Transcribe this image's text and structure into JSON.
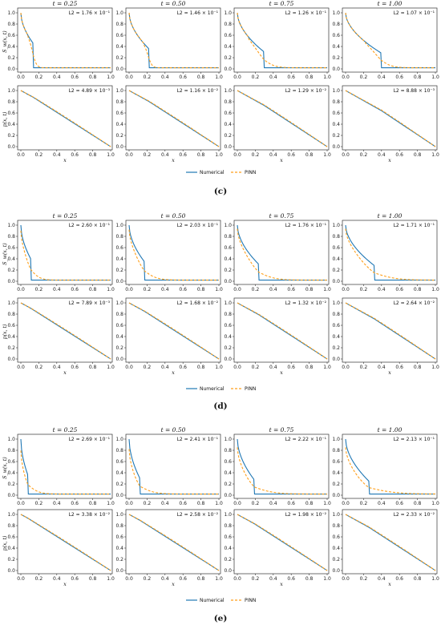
{
  "legend": {
    "numerical": "Numerical",
    "pinn": "PINN"
  },
  "colors": {
    "numerical": "#1f77b4",
    "pinn": "#ff9f1a"
  },
  "top_ylabel": "S_w(x, t)",
  "bottom_ylabel": "p(x, t)",
  "xlabel": "x",
  "x_ticks": [
    "0.0",
    "0.2",
    "0.4",
    "0.6",
    "0.8",
    "1.0"
  ],
  "y_ticks": [
    "0.0",
    "0.2",
    "0.4",
    "0.6",
    "0.8",
    "1.0"
  ],
  "chart_data": [
    {
      "type": "line",
      "panel_label": "(c)",
      "times": [
        "t = 0.25",
        "t = 0.50",
        "t = 0.75",
        "t = 1.00"
      ],
      "xlim": [
        0,
        1
      ],
      "ylim": [
        0,
        1
      ],
      "saturation": {
        "front": [
          0.14,
          0.22,
          0.3,
          0.4
        ],
        "shoulder_value": [
          0.45,
          0.36,
          0.3,
          0.28
        ],
        "pinn_smear": [
          0.02,
          0.02,
          0.06,
          0.06
        ],
        "l2": [
          "L2 = 1.76 × 10⁻¹",
          "L2 = 1.46 × 10⁻¹",
          "L2 = 1.26 × 10⁻¹",
          "L2 = 1.07 × 10⁻¹"
        ]
      },
      "pressure": {
        "front": [
          0.14,
          0.22,
          0.3,
          0.4
        ],
        "l2": [
          "L2 = 4.89 × 10⁻³",
          "L2 = 1.16 × 10⁻²",
          "L2 = 1.29 × 10⁻²",
          "L2 = 8.88 × 10⁻³"
        ]
      }
    },
    {
      "type": "line",
      "panel_label": "(d)",
      "times": [
        "t = 0.25",
        "t = 0.50",
        "t = 0.75",
        "t = 1.00"
      ],
      "xlim": [
        0,
        1
      ],
      "ylim": [
        0,
        1
      ],
      "saturation": {
        "front": [
          0.11,
          0.17,
          0.24,
          0.32
        ],
        "shoulder_value": [
          0.4,
          0.35,
          0.3,
          0.28
        ],
        "pinn_smear": [
          0.05,
          0.07,
          0.09,
          0.12
        ],
        "l2": [
          "L2 = 2.60 × 10⁻¹",
          "L2 = 2.03 × 10⁻¹",
          "L2 = 1.76 × 10⁻¹",
          "L2 = 1.71 × 10⁻¹"
        ]
      },
      "pressure": {
        "front": [
          0.11,
          0.17,
          0.24,
          0.32
        ],
        "l2": [
          "L2 = 7.89 × 10⁻³",
          "L2 = 1.68 × 10⁻²",
          "L2 = 1.32 × 10⁻²",
          "L2 = 2.64 × 10⁻²"
        ]
      }
    },
    {
      "type": "line",
      "panel_label": "(e)",
      "times": [
        "t = 0.25",
        "t = 0.50",
        "t = 0.75",
        "t = 1.00"
      ],
      "xlim": [
        0,
        1
      ],
      "ylim": [
        0,
        1
      ],
      "saturation": {
        "front": [
          0.08,
          0.12,
          0.19,
          0.26
        ],
        "shoulder_value": [
          0.35,
          0.3,
          0.27,
          0.25
        ],
        "pinn_smear": [
          0.06,
          0.08,
          0.11,
          0.15
        ],
        "l2": [
          "L2 = 2.69 × 10⁻¹",
          "L2 = 2.41 × 10⁻¹",
          "L2 = 2.22 × 10⁻¹",
          "L2 = 2.13 × 10⁻¹"
        ]
      },
      "pressure": {
        "front": [
          0.08,
          0.12,
          0.19,
          0.26
        ],
        "l2": [
          "L2 = 3.38 × 10⁻²",
          "L2 = 2.58 × 10⁻²",
          "L2 = 1.98 × 10⁻²",
          "L2 = 2.33 × 10⁻²"
        ]
      }
    }
  ]
}
